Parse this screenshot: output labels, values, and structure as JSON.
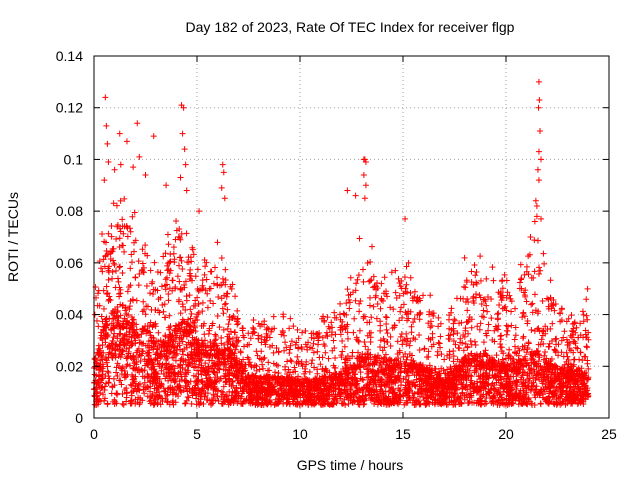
{
  "chart_data": {
    "type": "scatter",
    "title": "Day 182 of 2023, Rate Of TEC Index for receiver flgp",
    "xlabel": "GPS time / hours",
    "ylabel": "ROTI / TECUs",
    "xlim": [
      0,
      25
    ],
    "ylim": [
      0,
      0.14
    ],
    "grid": true,
    "marker": "+",
    "marker_color": "#ff0000",
    "x_ticks": [
      {
        "value": 0,
        "label": "0"
      },
      {
        "value": 5,
        "label": "5"
      },
      {
        "value": 10,
        "label": "10"
      },
      {
        "value": 15,
        "label": "15"
      },
      {
        "value": 20,
        "label": "20"
      },
      {
        "value": 25,
        "label": "25"
      }
    ],
    "y_ticks": [
      {
        "value": 0,
        "label": "0"
      },
      {
        "value": 0.02,
        "label": "0.02"
      },
      {
        "value": 0.04,
        "label": "0.04"
      },
      {
        "value": 0.06,
        "label": "0.06"
      },
      {
        "value": 0.08,
        "label": "0.08"
      },
      {
        "value": 0.1,
        "label": "0.1"
      },
      {
        "value": 0.12,
        "label": "0.12"
      },
      {
        "value": 0.14,
        "label": "0.14"
      }
    ],
    "envelope": {
      "x": [
        0,
        0.5,
        1,
        1.5,
        2,
        2.5,
        3,
        3.5,
        4,
        4.5,
        5,
        5.5,
        6,
        6.5,
        7,
        7.5,
        8,
        8.5,
        9,
        9.5,
        10,
        10.5,
        11,
        11.5,
        12,
        12.5,
        13,
        13.5,
        14,
        14.5,
        15,
        15.5,
        16,
        16.5,
        17,
        17.5,
        18,
        18.5,
        19,
        19.5,
        20,
        20.5,
        21,
        21.5,
        22,
        22.5,
        23,
        23.5,
        24
      ],
      "typical": [
        0.016,
        0.03,
        0.035,
        0.035,
        0.03,
        0.028,
        0.024,
        0.024,
        0.03,
        0.032,
        0.025,
        0.024,
        0.024,
        0.022,
        0.018,
        0.014,
        0.013,
        0.013,
        0.013,
        0.013,
        0.012,
        0.012,
        0.013,
        0.013,
        0.015,
        0.017,
        0.02,
        0.02,
        0.018,
        0.018,
        0.02,
        0.018,
        0.016,
        0.015,
        0.012,
        0.016,
        0.02,
        0.02,
        0.02,
        0.018,
        0.017,
        0.017,
        0.02,
        0.021,
        0.018,
        0.016,
        0.015,
        0.015,
        0.017
      ],
      "upper": [
        0.04,
        0.07,
        0.075,
        0.075,
        0.07,
        0.065,
        0.055,
        0.06,
        0.07,
        0.065,
        0.055,
        0.055,
        0.06,
        0.05,
        0.04,
        0.035,
        0.032,
        0.035,
        0.035,
        0.035,
        0.03,
        0.032,
        0.035,
        0.035,
        0.04,
        0.05,
        0.065,
        0.06,
        0.05,
        0.05,
        0.055,
        0.05,
        0.045,
        0.04,
        0.03,
        0.04,
        0.055,
        0.055,
        0.055,
        0.05,
        0.048,
        0.05,
        0.06,
        0.065,
        0.05,
        0.04,
        0.035,
        0.035,
        0.045
      ]
    },
    "outliers": [
      {
        "x": 0.55,
        "y": 0.124
      },
      {
        "x": 0.6,
        "y": 0.113
      },
      {
        "x": 0.65,
        "y": 0.106
      },
      {
        "x": 0.7,
        "y": 0.099
      },
      {
        "x": 0.5,
        "y": 0.092
      },
      {
        "x": 1.0,
        "y": 0.096
      },
      {
        "x": 1.25,
        "y": 0.11
      },
      {
        "x": 1.3,
        "y": 0.098
      },
      {
        "x": 1.6,
        "y": 0.107
      },
      {
        "x": 2.1,
        "y": 0.114
      },
      {
        "x": 2.2,
        "y": 0.101
      },
      {
        "x": 1.9,
        "y": 0.097
      },
      {
        "x": 2.9,
        "y": 0.109
      },
      {
        "x": 2.5,
        "y": 0.094
      },
      {
        "x": 3.5,
        "y": 0.09
      },
      {
        "x": 4.25,
        "y": 0.121
      },
      {
        "x": 4.35,
        "y": 0.12
      },
      {
        "x": 4.3,
        "y": 0.11
      },
      {
        "x": 4.4,
        "y": 0.104
      },
      {
        "x": 4.45,
        "y": 0.098
      },
      {
        "x": 4.2,
        "y": 0.093
      },
      {
        "x": 4.5,
        "y": 0.088
      },
      {
        "x": 6.25,
        "y": 0.098
      },
      {
        "x": 6.3,
        "y": 0.095
      },
      {
        "x": 6.2,
        "y": 0.089
      },
      {
        "x": 6.35,
        "y": 0.085
      },
      {
        "x": 5.1,
        "y": 0.08
      },
      {
        "x": 12.3,
        "y": 0.088
      },
      {
        "x": 12.7,
        "y": 0.086
      },
      {
        "x": 13.1,
        "y": 0.1
      },
      {
        "x": 13.15,
        "y": 0.1
      },
      {
        "x": 13.2,
        "y": 0.099
      },
      {
        "x": 13.1,
        "y": 0.094
      },
      {
        "x": 13.2,
        "y": 0.09
      },
      {
        "x": 13.15,
        "y": 0.085
      },
      {
        "x": 15.1,
        "y": 0.077
      },
      {
        "x": 21.6,
        "y": 0.13
      },
      {
        "x": 21.62,
        "y": 0.123
      },
      {
        "x": 21.58,
        "y": 0.12
      },
      {
        "x": 21.65,
        "y": 0.111
      },
      {
        "x": 21.6,
        "y": 0.103
      },
      {
        "x": 21.7,
        "y": 0.1
      },
      {
        "x": 21.55,
        "y": 0.096
      },
      {
        "x": 21.6,
        "y": 0.092
      },
      {
        "x": 21.45,
        "y": 0.084
      },
      {
        "x": 21.5,
        "y": 0.082
      },
      {
        "x": 21.5,
        "y": 0.078
      },
      {
        "x": 21.7,
        "y": 0.077
      },
      {
        "x": 21.4,
        "y": 0.076
      }
    ]
  }
}
